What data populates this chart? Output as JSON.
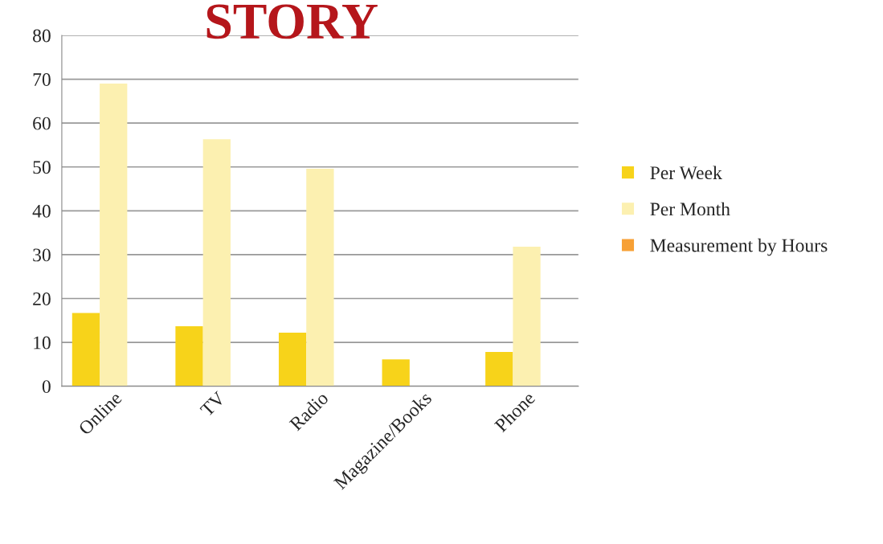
{
  "chart_data": {
    "type": "bar",
    "title": "STORY",
    "categories": [
      "Online",
      "TV",
      "Radio",
      "Magazine/Books",
      "Phone"
    ],
    "series": [
      {
        "name": "Per Week",
        "color": "#f7d31a",
        "values": [
          16.7,
          13.7,
          12.2,
          6.1,
          7.8
        ]
      },
      {
        "name": "Per Month",
        "color": "#fcf0b0",
        "values": [
          69,
          56.3,
          49.6,
          null,
          31.8
        ]
      },
      {
        "name": "Measurement by Hours",
        "color": "#f7a035",
        "values": [
          null,
          null,
          null,
          null,
          null
        ]
      }
    ],
    "ylim": [
      0,
      80
    ],
    "yticks": [
      0,
      10,
      20,
      30,
      40,
      50,
      60,
      70,
      80
    ],
    "grid": "y",
    "legend": "right"
  }
}
